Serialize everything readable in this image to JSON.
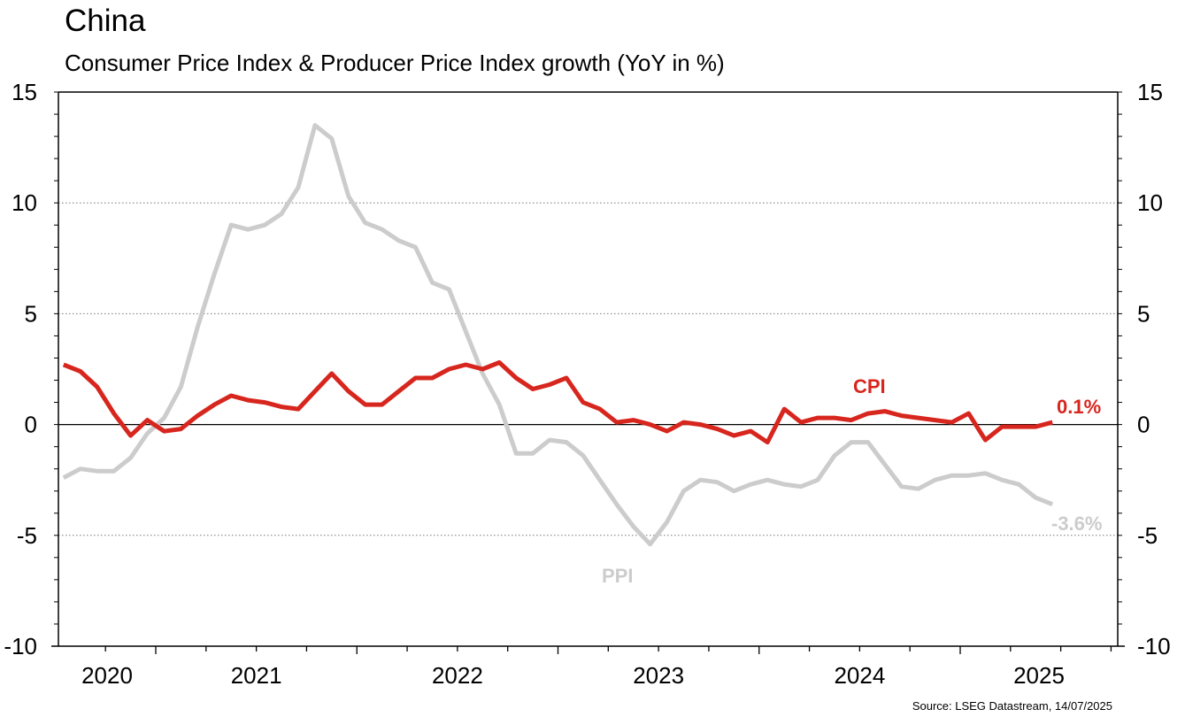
{
  "chart_data": {
    "type": "line",
    "title": "China",
    "subtitle": "Consumer Price Index & Producer Price Index growth (YoY in %)",
    "source": "Source: LSEG Datastream, 14/07/2025",
    "xlabel": "",
    "ylabel": "",
    "ylim": [
      -10,
      15
    ],
    "yticks": [
      15,
      10,
      5,
      0,
      -5,
      -10
    ],
    "grid": "dotted horizontal at major y ticks",
    "x_start": "2020-07",
    "x_end": "2025-12",
    "x_tick_labels": [
      "2020",
      "2021",
      "2022",
      "2023",
      "2024",
      "2025"
    ],
    "x": [
      "2020-07",
      "2020-08",
      "2020-09",
      "2020-10",
      "2020-11",
      "2020-12",
      "2021-01",
      "2021-02",
      "2021-03",
      "2021-04",
      "2021-05",
      "2021-06",
      "2021-07",
      "2021-08",
      "2021-09",
      "2021-10",
      "2021-11",
      "2021-12",
      "2022-01",
      "2022-02",
      "2022-03",
      "2022-04",
      "2022-05",
      "2022-06",
      "2022-07",
      "2022-08",
      "2022-09",
      "2022-10",
      "2022-11",
      "2022-12",
      "2023-01",
      "2023-02",
      "2023-03",
      "2023-04",
      "2023-05",
      "2023-06",
      "2023-07",
      "2023-08",
      "2023-09",
      "2023-10",
      "2023-11",
      "2023-12",
      "2024-01",
      "2024-02",
      "2024-03",
      "2024-04",
      "2024-05",
      "2024-06",
      "2024-07",
      "2024-08",
      "2024-09",
      "2024-10",
      "2024-11",
      "2024-12",
      "2025-01",
      "2025-02",
      "2025-03",
      "2025-04",
      "2025-05",
      "2025-06"
    ],
    "series": [
      {
        "name": "CPI",
        "color": "#d7261e",
        "end_label": "0.1%",
        "values": [
          2.7,
          2.4,
          1.7,
          0.5,
          -0.5,
          0.2,
          -0.3,
          -0.2,
          0.4,
          0.9,
          1.3,
          1.1,
          1.0,
          0.8,
          0.7,
          1.5,
          2.3,
          1.5,
          0.9,
          0.9,
          1.5,
          2.1,
          2.1,
          2.5,
          2.7,
          2.5,
          2.8,
          2.1,
          1.6,
          1.8,
          2.1,
          1.0,
          0.7,
          0.1,
          0.2,
          0.0,
          -0.3,
          0.1,
          0.0,
          -0.2,
          -0.5,
          -0.3,
          -0.8,
          0.7,
          0.1,
          0.3,
          0.3,
          0.2,
          0.5,
          0.6,
          0.4,
          0.3,
          0.2,
          0.1,
          0.5,
          -0.7,
          -0.1,
          -0.1,
          -0.1,
          0.1
        ]
      },
      {
        "name": "PPI",
        "color": "#cccccc",
        "end_label": "-3.6%",
        "values": [
          -2.4,
          -2.0,
          -2.1,
          -2.1,
          -1.5,
          -0.4,
          0.3,
          1.7,
          4.4,
          6.8,
          9.0,
          8.8,
          9.0,
          9.5,
          10.7,
          13.5,
          12.9,
          10.3,
          9.1,
          8.8,
          8.3,
          8.0,
          6.4,
          6.1,
          4.2,
          2.3,
          0.9,
          -1.3,
          -1.3,
          -0.7,
          -0.8,
          -1.4,
          -2.5,
          -3.6,
          -4.6,
          -5.4,
          -4.4,
          -3.0,
          -2.5,
          -2.6,
          -3.0,
          -2.7,
          -2.5,
          -2.7,
          -2.8,
          -2.5,
          -1.4,
          -0.8,
          -0.8,
          -1.8,
          -2.8,
          -2.9,
          -2.5,
          -2.3,
          -2.3,
          -2.2,
          -2.5,
          -2.7,
          -3.3,
          -3.6
        ]
      }
    ],
    "legend": "inline labels"
  }
}
